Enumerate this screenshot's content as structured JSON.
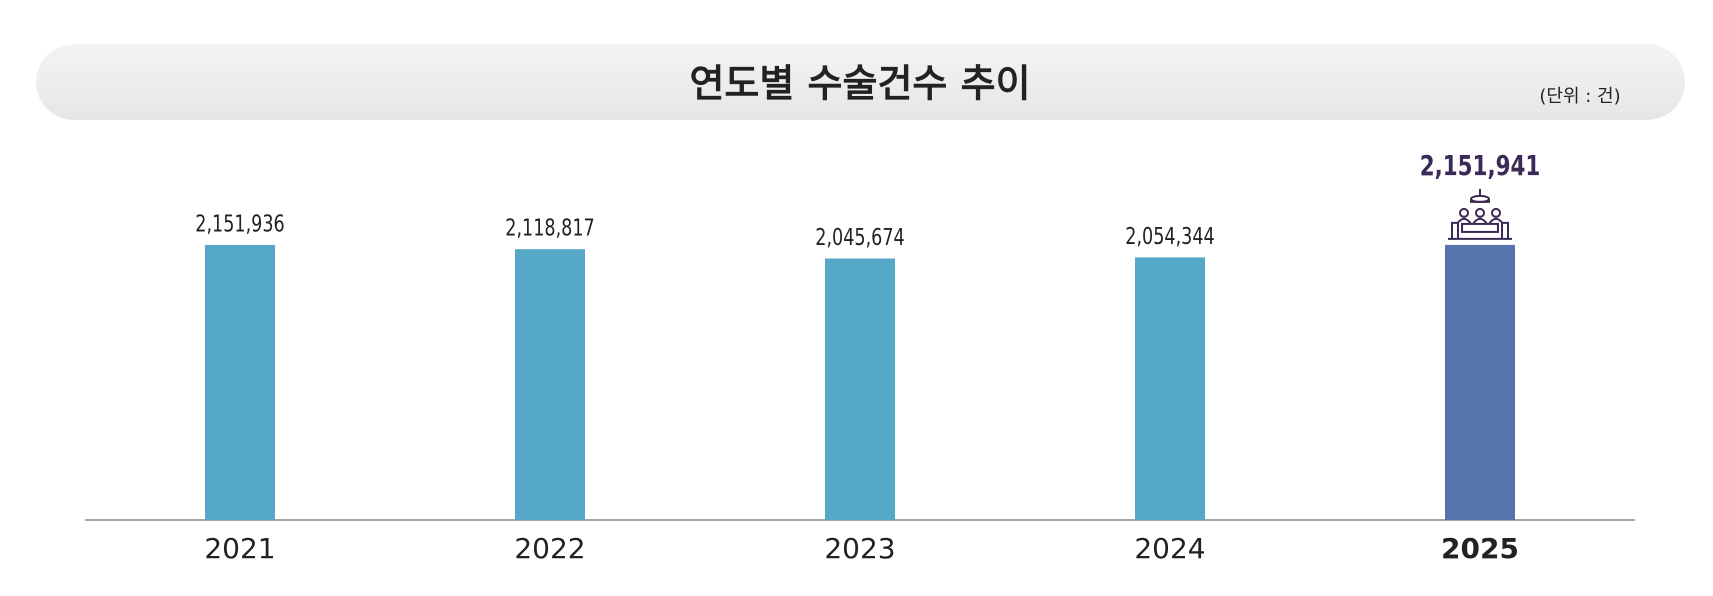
{
  "chart_data": {
    "type": "bar",
    "title": "연도별 수술건수 추이",
    "unit_note": "(단위 : 건)",
    "categories": [
      "2021",
      "2022",
      "2023",
      "2024",
      "2025"
    ],
    "values": [
      2151936,
      2118817,
      2045674,
      2054344,
      2151941
    ],
    "value_labels": [
      "2,151,936",
      "2,118,817",
      "2,045,674",
      "2,054,344",
      "2,151,941"
    ],
    "colors": [
      "#56a8c8",
      "#56a8c8",
      "#56a8c8",
      "#56a8c8",
      "#5673ab"
    ],
    "ylim": [
      0,
      2300000
    ]
  }
}
